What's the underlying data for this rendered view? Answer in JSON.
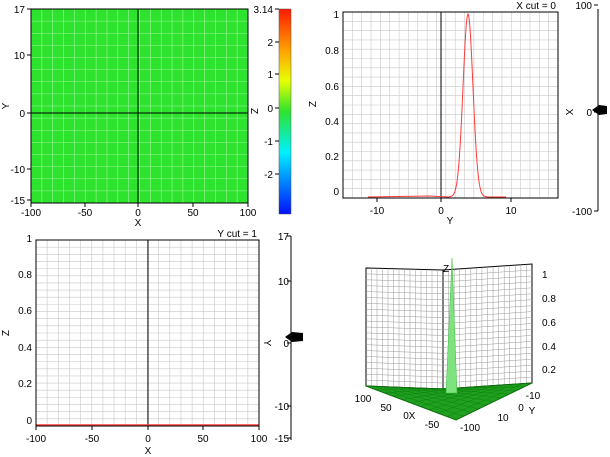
{
  "heatmap": {
    "x_ticks": [
      "-100",
      "-50",
      "0",
      "50",
      "100"
    ],
    "y_ticks": [
      "17",
      "10",
      "0",
      "-10",
      "-15"
    ],
    "x_label": "X",
    "y_label": "Y",
    "colorbar_ticks": [
      "3.14",
      "2",
      "1",
      "0",
      "-1",
      "-2"
    ],
    "colorbar_label": "Z",
    "fill_color": "#2ee32e"
  },
  "x_cut_panel": {
    "title": "X cut = 0",
    "z_ticks": [
      "1",
      "0.8",
      "0.6",
      "0.4",
      "0.2",
      "0"
    ],
    "y_ticks": [
      "-10",
      "0",
      "10"
    ],
    "x_label": "Y",
    "z_label": "Z",
    "slider_ticks": [
      "100",
      "0",
      "-100"
    ],
    "slider_label": "X",
    "slider_value": 0,
    "curve_color": "#ff3b3b"
  },
  "y_cut_panel": {
    "title": "Y cut = 1",
    "z_ticks": [
      "1",
      "0.8",
      "0.6",
      "0.4",
      "0.2",
      "0"
    ],
    "x_ticks": [
      "-100",
      "-50",
      "0",
      "50",
      "100"
    ],
    "x_label": "X",
    "z_label": "Z",
    "slider_ticks": [
      "17",
      "10",
      "0",
      "-10",
      "-15"
    ],
    "slider_label": "Y",
    "slider_value": 1,
    "curve_color": "#ff3b3b"
  },
  "surface_3d": {
    "z_ticks": [
      "1",
      "0.8",
      "0.6",
      "0.4",
      "0.2"
    ],
    "z_label": "Z",
    "x_ticks": [
      "100",
      "50",
      "0",
      "-50",
      "-100"
    ],
    "x_label": "X",
    "y_ticks": [
      "-10",
      "0",
      "10"
    ],
    "y_label": "Y",
    "surface_color": "#1fa01f",
    "peak_color": "#7ee27e"
  }
}
